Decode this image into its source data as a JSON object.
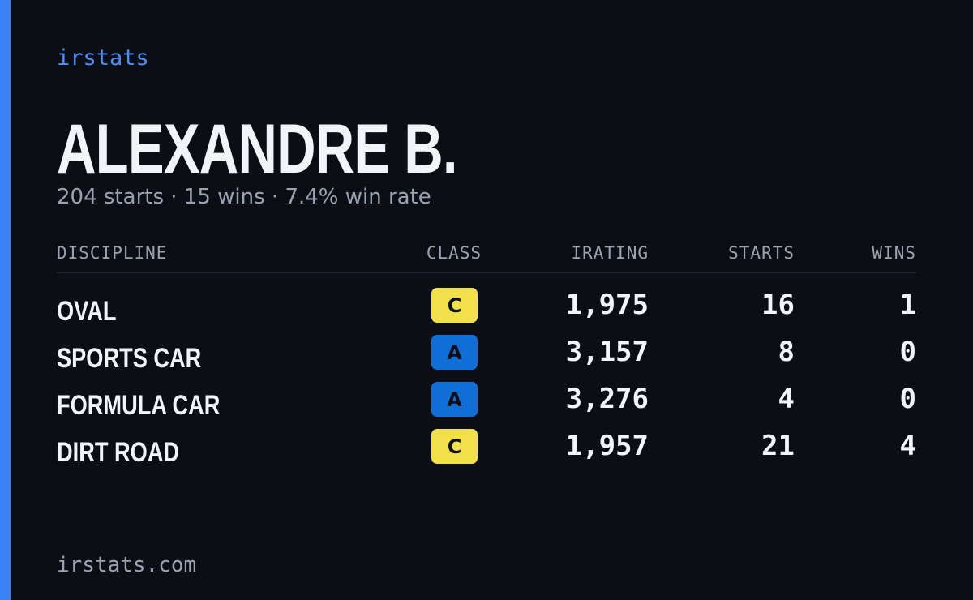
{
  "brand": "irstats",
  "driver": {
    "name": "ALEXANDRE B.",
    "summary": "204 starts · 15 wins · 7.4% win rate"
  },
  "table": {
    "headers": [
      "DISCIPLINE",
      "CLASS",
      "IRATING",
      "STARTS",
      "WINS"
    ],
    "rows": [
      {
        "discipline": "OVAL",
        "class": "C",
        "class_color": "#f2e04b",
        "irating": "1,975",
        "starts": "16",
        "wins": "1"
      },
      {
        "discipline": "SPORTS CAR",
        "class": "A",
        "class_color": "#0f6fd6",
        "irating": "3,157",
        "starts": "8",
        "wins": "0"
      },
      {
        "discipline": "FORMULA CAR",
        "class": "A",
        "class_color": "#0f6fd6",
        "irating": "3,276",
        "starts": "4",
        "wins": "0"
      },
      {
        "discipline": "DIRT ROAD",
        "class": "C",
        "class_color": "#f2e04b",
        "irating": "1,957",
        "starts": "21",
        "wins": "4"
      }
    ]
  },
  "footer": "irstats.com"
}
